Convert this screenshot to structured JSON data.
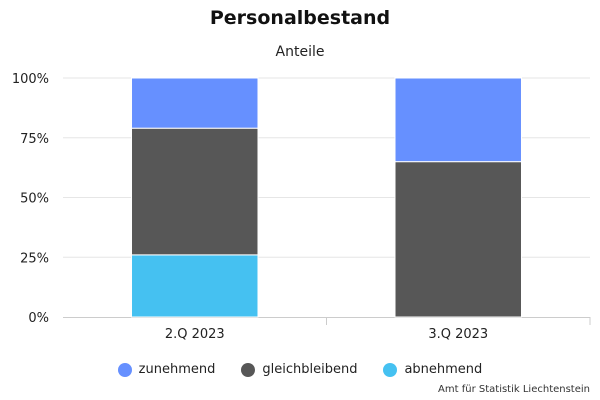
{
  "chart_data": {
    "type": "bar",
    "stacked": true,
    "stacking": "percent",
    "title": "Personalbestand",
    "subtitle": "Anteile",
    "categories": [
      "2.Q 2023",
      "3.Q 2023"
    ],
    "series": [
      {
        "name": "zunehmend",
        "color": "#6690ff",
        "values": [
          21,
          35
        ]
      },
      {
        "name": "gleichbleibend",
        "color": "#575757",
        "values": [
          53,
          65
        ]
      },
      {
        "name": "abnehmend",
        "color": "#45c1f1",
        "values": [
          26,
          0
        ]
      }
    ],
    "ylim": [
      0,
      100
    ],
    "yticks": [
      "0%",
      "25%",
      "50%",
      "75%",
      "100%"
    ],
    "grid": true,
    "legend_position": "bottom"
  },
  "credits": "Amt für Statistik Liechtenstein"
}
